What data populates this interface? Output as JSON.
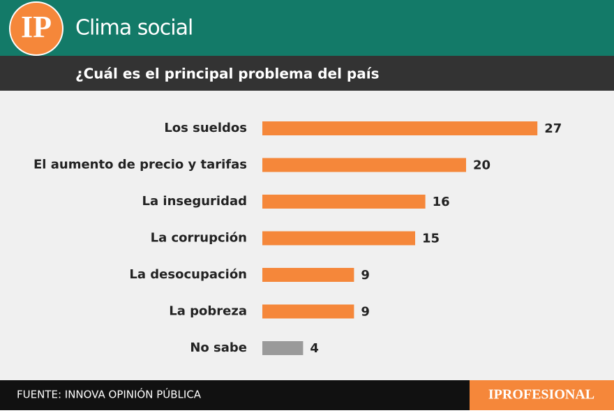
{
  "chart_data": {
    "type": "bar",
    "orientation": "horizontal",
    "logo": "IP",
    "title": "Clima social",
    "subtitle": "¿Cuál es el principal problema del país",
    "categories": [
      "Los sueldos",
      "El aumento de precio y tarifas",
      "La inseguridad",
      "La corrupción",
      "La desocupación",
      "La pobreza",
      "No sabe"
    ],
    "values": [
      27,
      20,
      16,
      15,
      9,
      9,
      4
    ],
    "colors": [
      "#f5873a",
      "#f5873a",
      "#f5873a",
      "#f5873a",
      "#f5873a",
      "#f5873a",
      "#9a9a9a"
    ],
    "source": "FUENTE: INNOVA OPINIÓN PÚBLICA",
    "brand": "IPROFESIONAL"
  }
}
